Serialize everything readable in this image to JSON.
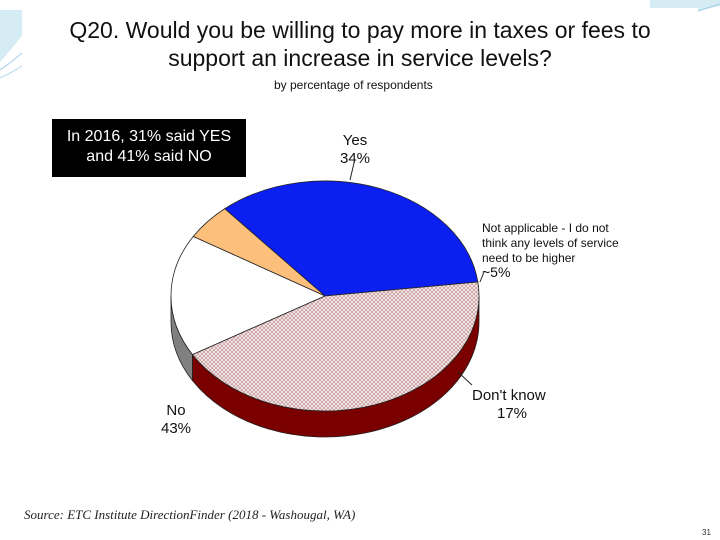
{
  "slide": {
    "title_line1": "Q20. Would you be willing to pay more in taxes or fees to",
    "title_line2": "support an increase in service levels?",
    "subtitle": "by percentage of respondents",
    "note_line1": "In 2016, 31% said YES",
    "note_line2": "and 41% said NO",
    "source": "Source: ETC Institute DirectionFinder (2018 - Washougal, WA)",
    "page_number": "31"
  },
  "chart_data": {
    "type": "pie",
    "title": "Q20. Would you be willing to pay more in taxes or fees to support an increase in service levels?",
    "subtitle": "by percentage of respondents",
    "slices": [
      {
        "label": "Yes",
        "value": 34,
        "value_label": "34%",
        "color": "#0a1ff0",
        "side_color": "#0a0a80"
      },
      {
        "label": "Not applicable - I do not think any levels of service need to be higher",
        "label_lines": [
          "Not applicable - I do not",
          "think any levels of service",
          "need to be higher"
        ],
        "value": 5,
        "value_label": "~5%",
        "color": "#fcbf7c",
        "side_color": "#a87a48"
      },
      {
        "label": "Don't know",
        "value": 17,
        "value_label": "17%",
        "color": "#ffffff",
        "side_color": "#808080"
      },
      {
        "label": "No",
        "value": 43,
        "value_label": "43%",
        "color": "#f2e6e8",
        "side_color": "#7a0000",
        "pattern": "crosshatch"
      }
    ],
    "style": "3d-pie"
  }
}
